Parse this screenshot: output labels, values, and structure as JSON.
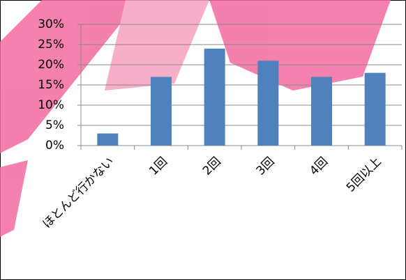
{
  "chart_data": {
    "type": "bar",
    "categories": [
      "ほとんど行かない",
      "1回",
      "2回",
      "3回",
      "4回",
      "5回以上"
    ],
    "values": [
      3,
      17,
      24,
      21,
      17,
      18
    ],
    "color": "#4f81bd",
    "ylim": [
      0,
      30
    ],
    "yticks": [
      {
        "value": 0,
        "label": "0%"
      },
      {
        "value": 5,
        "label": "5%"
      },
      {
        "value": 10,
        "label": "10%"
      },
      {
        "value": 15,
        "label": "15%"
      },
      {
        "value": 20,
        "label": "20%"
      },
      {
        "value": 25,
        "label": "25%"
      },
      {
        "value": 30,
        "label": "30%"
      }
    ],
    "grid": true
  }
}
